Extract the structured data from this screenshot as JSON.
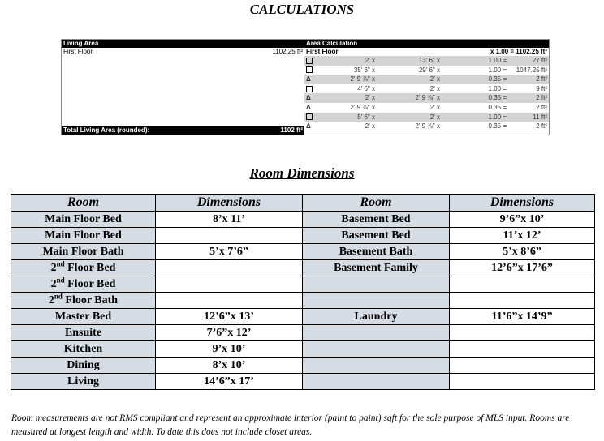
{
  "calc_title": "CALCULATIONS",
  "living": {
    "header": "Living Area",
    "floor": "First Floor",
    "floor_area": "1102.25 ft²",
    "total_label": "Total Living Area (rounded):",
    "total": "1102 ft²"
  },
  "area": {
    "header": "Area Calculation",
    "floor": "First Floor",
    "floor_total": "x 1.00 = 1102.25 ft²",
    "rows": [
      {
        "shape": "rectangle",
        "a": "2' x",
        "b": "13' 6\" x",
        "f": "1.00 =",
        "r": "27 ft²"
      },
      {
        "shape": "rectangle",
        "a": "35' 6\" x",
        "b": "29' 6\" x",
        "f": "1.00 =",
        "r": "1047.25 ft²"
      },
      {
        "shape": "triangle",
        "a": "2' 9 ⅞\" x",
        "b": "2' x",
        "f": "0.35 =",
        "r": "2 ft²"
      },
      {
        "shape": "rectangle",
        "a": "4' 6\" x",
        "b": "2' x",
        "f": "1.00 =",
        "r": "9 ft²"
      },
      {
        "shape": "triangle",
        "a": "2' x",
        "b": "2' 9 ⅞\" x",
        "f": "0.35 =",
        "r": "2 ft²"
      },
      {
        "shape": "triangle",
        "a": "2' 9 ⅞\" x",
        "b": "2' x",
        "f": "0.35 =",
        "r": "2 ft²"
      },
      {
        "shape": "rectangle",
        "a": "5' 6\" x",
        "b": "2' x",
        "f": "1.00 =",
        "r": "11 ft²"
      },
      {
        "shape": "triangle",
        "a": "2' x",
        "b": "2' 9 ⅞\" x",
        "f": "0.35 =",
        "r": "2 ft²"
      }
    ]
  },
  "rooms_title": "Room Dimensions",
  "rooms": {
    "headers": [
      "Room",
      "Dimensions",
      "Room",
      "Dimensions"
    ],
    "rows": [
      [
        {
          "t": "Main Floor Bed"
        },
        "8’x 11’",
        {
          "t": "Basement Bed"
        },
        "9’6”x 10’"
      ],
      [
        {
          "t": "Main Floor Bed"
        },
        "",
        {
          "t": "Basement Bed"
        },
        "11’x 12’"
      ],
      [
        {
          "t": "Main Floor Bath"
        },
        "5’x 7’6”",
        {
          "t": "Basement Bath"
        },
        "5’x 8’6”"
      ],
      [
        {
          "n": "2",
          "s": "nd",
          "t": " Floor Bed"
        },
        "",
        {
          "t": "Basement Family"
        },
        "12’6”x 17’6”"
      ],
      [
        {
          "n": "2",
          "s": "nd",
          "t": " Floor Bed"
        },
        "",
        {
          "t": ""
        },
        ""
      ],
      [
        {
          "n": "2",
          "s": "nd",
          "t": " Floor Bath"
        },
        "",
        {
          "t": ""
        },
        ""
      ],
      [
        {
          "t": "Master Bed"
        },
        "12’6”x 13’",
        {
          "t": "Laundry"
        },
        "11’6”x 14’9”"
      ],
      [
        {
          "t": "Ensuite"
        },
        "7’6”x 12’",
        {
          "t": ""
        },
        ""
      ],
      [
        {
          "t": "Kitchen"
        },
        "9’x 10’",
        {
          "t": ""
        },
        ""
      ],
      [
        {
          "t": "Dining"
        },
        "8’x 10’",
        {
          "t": ""
        },
        ""
      ],
      [
        {
          "t": "Living"
        },
        "14’6”x 17’",
        {
          "t": ""
        },
        ""
      ]
    ]
  },
  "note": "Room measurements are not RMS compliant and represent an approximate interior (paint to paint) sqft for the sole purpose of MLS input.  Rooms are measured at longest length and width.  To date this does not include closet areas."
}
